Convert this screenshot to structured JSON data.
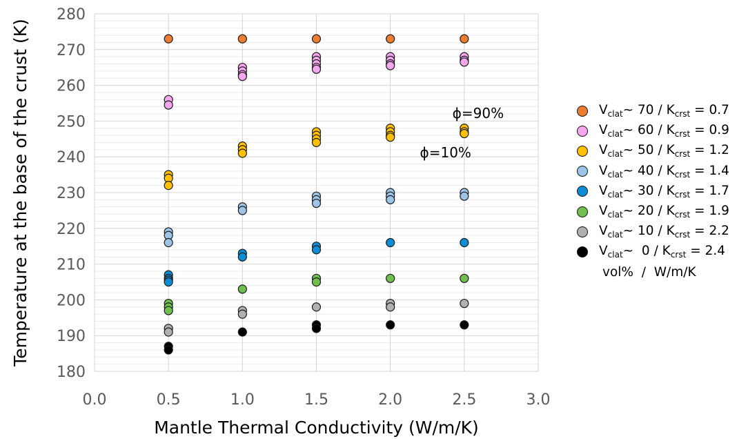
{
  "chart_data": {
    "type": "scatter",
    "title": "",
    "xlabel": "Mantle Thermal Conductivity (W/m/K)",
    "ylabel": "Temperature at the base of the crust (K)",
    "xlim": [
      0.0,
      3.0
    ],
    "ylim": [
      180,
      280
    ],
    "x_ticks": [
      "0.0",
      "0.5",
      "1.0",
      "1.5",
      "2.0",
      "2.5",
      "3.0"
    ],
    "y_ticks": [
      "180",
      "190",
      "200",
      "210",
      "220",
      "230",
      "240",
      "250",
      "260",
      "270",
      "280"
    ],
    "grid": true,
    "legend_position": "right",
    "legend_units": "vol%  /  W/m/K",
    "annotations": [
      {
        "text": "ϕ=90%",
        "x": 2.42,
        "y": 252
      },
      {
        "text": "ϕ=10%",
        "x": 2.2,
        "y": 241
      }
    ],
    "series": [
      {
        "name": "Vclat~ 70 / Kcrst = 0.7",
        "label_parts": [
          "V",
          "clat",
          "~ 70 / K",
          "crst",
          " = 0.7"
        ],
        "color": "#ED7D31",
        "x": [
          0.5,
          1.0,
          1.5,
          2.0,
          2.5
        ],
        "y": [
          273,
          273,
          273,
          273,
          273
        ]
      },
      {
        "name": "Vclat~ 60 / Kcrst = 0.9",
        "label_parts": [
          "V",
          "clat",
          "~ 60 / K",
          "crst",
          " = 0.9"
        ],
        "color": "#F4A6EE",
        "x": [
          0.5,
          0.5,
          1.0,
          1.0,
          1.0,
          1.0,
          1.5,
          1.5,
          1.5,
          1.5,
          1.5,
          2.0,
          2.0,
          2.0,
          2.0,
          2.5,
          2.5,
          2.5
        ],
        "y": [
          256,
          254.5,
          265,
          264,
          263,
          262.5,
          268,
          267,
          266,
          265,
          264.5,
          268,
          267,
          266,
          265.5,
          268,
          267,
          266.5
        ]
      },
      {
        "name": "Vclat~ 50 / Kcrst = 1.2",
        "label_parts": [
          "V",
          "clat",
          "~ 50 / K",
          "crst",
          " = 1.2"
        ],
        "color": "#FFC000",
        "x": [
          0.5,
          0.5,
          0.5,
          1.0,
          1.0,
          1.0,
          1.5,
          1.5,
          1.5,
          1.5,
          2.0,
          2.0,
          2.0,
          2.0,
          2.5,
          2.5,
          2.5
        ],
        "y": [
          235,
          234,
          232,
          243,
          242,
          241,
          247,
          246,
          245,
          244,
          248,
          247,
          246,
          245.5,
          248,
          247,
          246.5
        ]
      },
      {
        "name": "Vclat~ 40 / Kcrst = 1.4",
        "label_parts": [
          "V",
          "clat",
          "~ 40 / K",
          "crst",
          " = 1.4"
        ],
        "color": "#9DC3E6",
        "x": [
          0.5,
          0.5,
          0.5,
          1.0,
          1.0,
          1.5,
          1.5,
          1.5,
          2.0,
          2.0,
          2.0,
          2.5,
          2.5
        ],
        "y": [
          219,
          218,
          216,
          226,
          225,
          229,
          228,
          227,
          230,
          229,
          228,
          230,
          229
        ]
      },
      {
        "name": "Vclat~ 30 / Kcrst = 1.7",
        "label_parts": [
          "V",
          "clat",
          "~ 30 / K",
          "crst",
          " = 1.7"
        ],
        "color": "#0C8DD3",
        "x": [
          0.5,
          0.5,
          0.5,
          0.5,
          1.0,
          1.0,
          1.5,
          1.5,
          2.0,
          2.5
        ],
        "y": [
          207,
          206,
          205.5,
          205,
          213,
          212,
          215,
          214,
          216,
          216
        ]
      },
      {
        "name": "Vclat~ 20 / Kcrst = 1.9",
        "label_parts": [
          "V",
          "clat",
          "~ 20 / K",
          "crst",
          " = 1.9"
        ],
        "color": "#70C050",
        "x": [
          0.5,
          0.5,
          0.5,
          1.0,
          1.5,
          1.5,
          2.0,
          2.5
        ],
        "y": [
          199,
          198,
          197,
          203,
          206,
          205,
          206,
          206
        ]
      },
      {
        "name": "Vclat~ 10 / Kcrst = 2.2",
        "label_parts": [
          "V",
          "clat",
          "~ 10 / K",
          "crst",
          " = 2.2"
        ],
        "color": "#B0B0B0",
        "x": [
          0.5,
          0.5,
          1.0,
          1.0,
          1.5,
          2.0,
          2.0,
          2.5
        ],
        "y": [
          192,
          191,
          197,
          196,
          198,
          199,
          198,
          199
        ]
      },
      {
        "name": "Vclat~  0 / Kcrst = 2.4",
        "label_parts": [
          "V",
          "clat",
          "~  0 / K",
          "crst",
          " = 2.4"
        ],
        "color": "#000000",
        "x": [
          0.5,
          0.5,
          1.0,
          1.5,
          1.5,
          2.0,
          2.5
        ],
        "y": [
          187,
          186,
          191,
          193,
          192,
          193,
          193
        ]
      }
    ]
  }
}
